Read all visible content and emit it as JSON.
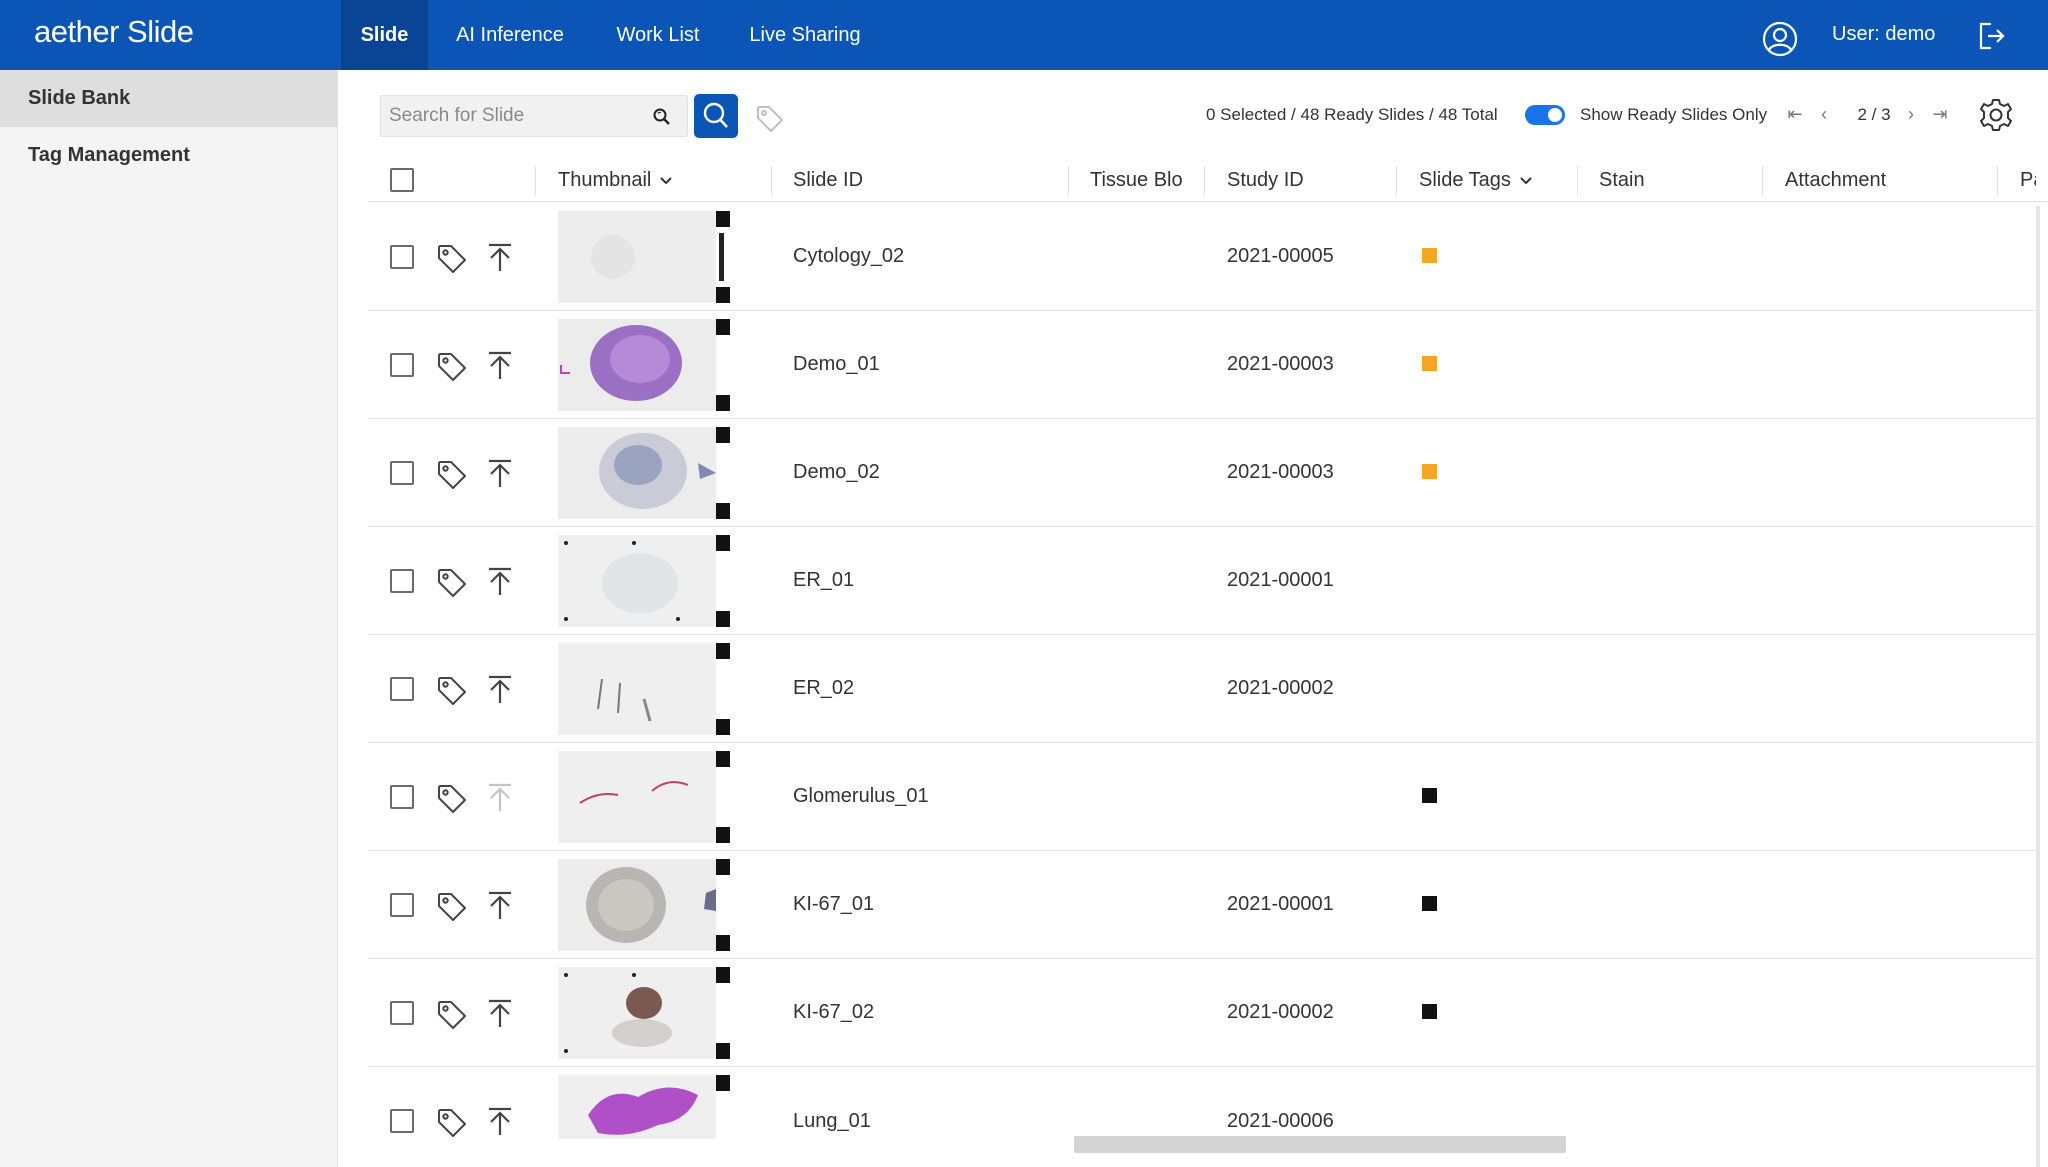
{
  "app": {
    "title": "aether Slide"
  },
  "nav": {
    "tabs": [
      {
        "label": "Slide",
        "active": true
      },
      {
        "label": "AI Inference",
        "active": false
      },
      {
        "label": "Work List",
        "active": false
      },
      {
        "label": "Live Sharing",
        "active": false
      }
    ],
    "user_label": "User: demo",
    "user_icon": "user-circle-icon",
    "logout_icon": "logout-icon"
  },
  "sidebar": {
    "items": [
      {
        "label": "Slide Bank",
        "active": true
      },
      {
        "label": "Tag Management",
        "active": false
      }
    ]
  },
  "toolbar": {
    "search": {
      "placeholder": "Search for Slide",
      "value": ""
    },
    "counts_text": "0 Selected / 48 Ready Slides / 48 Total",
    "toggle": {
      "label": "Show Ready Slides Only",
      "on": true
    },
    "pagination": {
      "text": "2 / 3",
      "current": 2,
      "total": 3
    }
  },
  "table": {
    "columns": [
      {
        "label": "Thumbnail",
        "sortable": true
      },
      {
        "label": "Slide ID",
        "sortable": false
      },
      {
        "label": "Tissue Blo",
        "sortable": false
      },
      {
        "label": "Study ID",
        "sortable": false
      },
      {
        "label": "Slide Tags",
        "sortable": true
      },
      {
        "label": "Stain",
        "sortable": false
      },
      {
        "label": "Attachment",
        "sortable": false
      },
      {
        "label": "Pat",
        "sortable": false
      }
    ],
    "rows": [
      {
        "slide_id": "Cytology_02",
        "study_id": "2021-00005",
        "tag_color": "#f5a623",
        "upload_enabled": true
      },
      {
        "slide_id": "Demo_01",
        "study_id": "2021-00003",
        "tag_color": "#f5a623",
        "upload_enabled": true
      },
      {
        "slide_id": "Demo_02",
        "study_id": "2021-00003",
        "tag_color": "#f5a623",
        "upload_enabled": true
      },
      {
        "slide_id": "ER_01",
        "study_id": "2021-00001",
        "tag_color": "",
        "upload_enabled": true
      },
      {
        "slide_id": "ER_02",
        "study_id": "2021-00002",
        "tag_color": "",
        "upload_enabled": true
      },
      {
        "slide_id": "Glomerulus_01",
        "study_id": "",
        "tag_color": "#111111",
        "upload_enabled": false
      },
      {
        "slide_id": "KI-67_01",
        "study_id": "2021-00001",
        "tag_color": "#111111",
        "upload_enabled": true
      },
      {
        "slide_id": "KI-67_02",
        "study_id": "2021-00002",
        "tag_color": "#111111",
        "upload_enabled": true
      },
      {
        "slide_id": "Lung_01",
        "study_id": "2021-00006",
        "tag_color": "",
        "upload_enabled": true
      }
    ]
  },
  "colors": {
    "brand": "#0a55b5",
    "brand_dark": "#0a4494",
    "tag_orange": "#f5a623",
    "tag_black": "#111111",
    "toggle_on": "#1a73e8"
  }
}
